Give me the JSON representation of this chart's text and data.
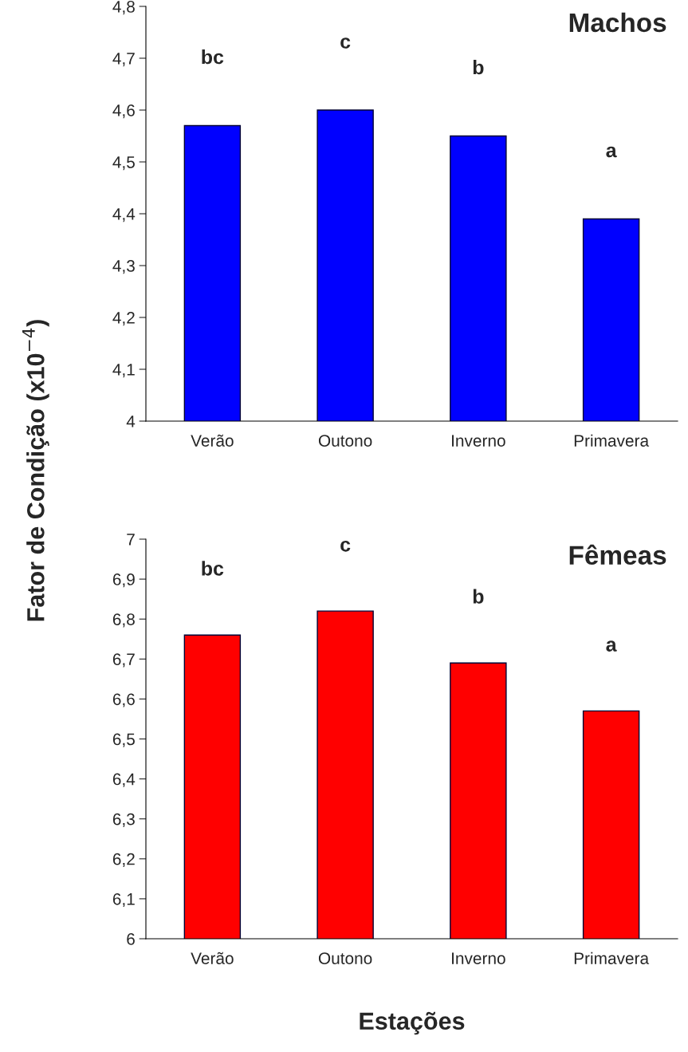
{
  "chart_data": [
    {
      "type": "bar",
      "title": "Machos",
      "ylabel": "Fator de Condição (x10$^{−4}$)",
      "categories": [
        "Verão",
        "Outono",
        "Inverno",
        "Primavera"
      ],
      "series": [
        {
          "color": "#0000ff",
          "values": [
            4.57,
            4.6,
            4.55,
            4.39
          ]
        }
      ],
      "ylim": [
        4,
        4.8
      ],
      "yticks": [
        4,
        {
          "value": 4.1,
          "label": "4,1"
        },
        {
          "value": 4.2,
          "label": "4,2"
        },
        {
          "value": 4.3,
          "label": "4,3"
        },
        {
          "value": 4.4,
          "label": "4,4"
        },
        {
          "value": 4.5,
          "label": "4,5"
        },
        {
          "value": 4.6,
          "label": "4,6"
        },
        {
          "value": 4.7,
          "label": "4,7"
        },
        {
          "value": 4.8,
          "label": "4,8"
        }
      ],
      "annotations": [
        "bc",
        "c",
        "b",
        "a"
      ],
      "grid": false,
      "legend": false
    },
    {
      "type": "bar",
      "title": "Fêmeas",
      "xlabel": "Estações",
      "categories": [
        "Verão",
        "Outono",
        "Inverno",
        "Primavera"
      ],
      "series": [
        {
          "color": "#ff0000",
          "values": [
            6.76,
            6.82,
            6.69,
            6.57
          ]
        }
      ],
      "ylim": [
        6,
        7
      ],
      "yticks": [
        6,
        {
          "value": 6.1,
          "label": "6,1"
        },
        {
          "value": 6.2,
          "label": "6,2"
        },
        {
          "value": 6.3,
          "label": "6,3"
        },
        {
          "value": 6.4,
          "label": "6,4"
        },
        {
          "value": 6.5,
          "label": "6,5"
        },
        {
          "value": 6.6,
          "label": "6,6"
        },
        {
          "value": 6.7,
          "label": "6,7"
        },
        {
          "value": 6.8,
          "label": "6,8"
        },
        {
          "value": 6.9,
          "label": "6,9"
        },
        7
      ],
      "annotations": [
        "bc",
        "c",
        "b",
        "a"
      ],
      "grid": false,
      "legend": false
    }
  ]
}
